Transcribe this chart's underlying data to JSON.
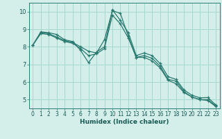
{
  "xlabel": "Humidex (Indice chaleur)",
  "background_color": "#d4eeea",
  "grid_color": "#a8d8d0",
  "line_color": "#2a7a70",
  "xlim": [
    -0.5,
    23.5
  ],
  "ylim": [
    4.5,
    10.5
  ],
  "xticks": [
    0,
    1,
    2,
    3,
    4,
    5,
    6,
    7,
    8,
    9,
    10,
    11,
    12,
    13,
    14,
    15,
    16,
    17,
    18,
    19,
    20,
    21,
    22,
    23
  ],
  "yticks": [
    5,
    6,
    7,
    8,
    9,
    10
  ],
  "series1_x": [
    0,
    1,
    2,
    3,
    4,
    5,
    6,
    7,
    8,
    9,
    10,
    11,
    12,
    13,
    14,
    15,
    16,
    17,
    18,
    19,
    20,
    21,
    22,
    23
  ],
  "series1_y": [
    8.1,
    8.85,
    8.8,
    8.7,
    8.4,
    8.3,
    7.8,
    7.1,
    7.7,
    8.0,
    10.1,
    9.5,
    8.8,
    7.5,
    7.65,
    7.5,
    7.05,
    6.3,
    6.15,
    5.55,
    5.25,
    5.1,
    5.12,
    4.7
  ],
  "series2_x": [
    0,
    1,
    2,
    3,
    4,
    5,
    6,
    7,
    8,
    9,
    10,
    11,
    12,
    13,
    14,
    15,
    16,
    17,
    18,
    19,
    20,
    21,
    22,
    23
  ],
  "series2_y": [
    8.1,
    8.8,
    8.75,
    8.55,
    8.35,
    8.25,
    8.0,
    7.75,
    7.65,
    8.4,
    10.05,
    9.9,
    8.6,
    7.4,
    7.5,
    7.35,
    6.9,
    6.15,
    6.05,
    5.45,
    5.15,
    5.0,
    5.0,
    4.65
  ],
  "series3_x": [
    0,
    1,
    2,
    3,
    4,
    5,
    6,
    7,
    8,
    9,
    10,
    11,
    12,
    13,
    14,
    15,
    16,
    17,
    18,
    19,
    20,
    21,
    22,
    23
  ],
  "series3_y": [
    8.1,
    8.75,
    8.7,
    8.5,
    8.3,
    8.2,
    7.9,
    7.5,
    7.6,
    7.9,
    9.8,
    9.3,
    8.5,
    7.4,
    7.4,
    7.2,
    6.8,
    6.1,
    5.9,
    5.4,
    5.15,
    5.0,
    4.95,
    4.6
  ]
}
